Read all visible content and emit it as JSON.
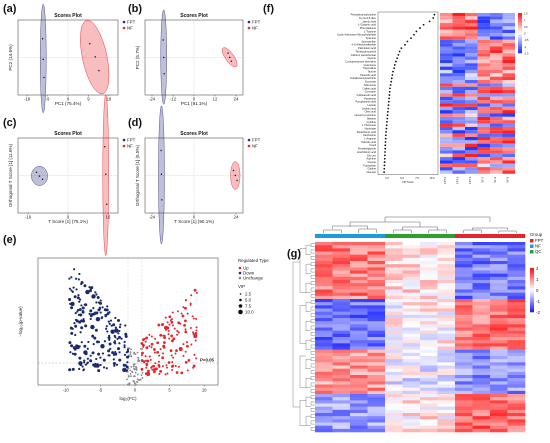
{
  "panel_labels": [
    "(a)",
    "(b)",
    "(c)",
    "(d)",
    "(e)",
    "(f)",
    "(g)"
  ],
  "chart_data": [
    {
      "panel": "(a)",
      "type": "scatter",
      "title": "Scores Plot",
      "xlabel": "PC1 (75.4%)",
      "ylabel": "PC2 (14.6%)",
      "xticks": [
        "-18",
        "-9",
        "0",
        "9",
        "18"
      ],
      "legend": [
        "FPT",
        "NF"
      ],
      "colors": {
        "FPT": "#2b2f7a",
        "NF": "#e3262b"
      },
      "series": [
        {
          "name": "FPT",
          "x": [
            -11.2,
            -10.9,
            -10.6
          ],
          "y": [
            3.0,
            -0.3,
            -3.2
          ]
        },
        {
          "name": "NF",
          "x": [
            9.6,
            12.0,
            13.6
          ],
          "y": [
            2.2,
            0.1,
            -2.1
          ]
        }
      ]
    },
    {
      "panel": "(b)",
      "type": "scatter",
      "title": "Scores Plot",
      "xlabel": "PC1 (91.1%)",
      "ylabel": "PC2 (5.7%)",
      "xticks": [
        "-24",
        "-12",
        "0",
        "12",
        "24"
      ],
      "legend": [
        "FPT",
        "NF"
      ],
      "colors": {
        "FPT": "#2b2f7a",
        "NF": "#e3262b"
      },
      "series": [
        {
          "name": "FPT",
          "x": [
            -17.6,
            -17.3,
            -17.0
          ],
          "y": [
            2.8,
            0.0,
            -2.6
          ]
        },
        {
          "name": "NF",
          "x": [
            19.5,
            20.4,
            21.3
          ],
          "y": [
            0.7,
            0.0,
            -0.6
          ]
        }
      ]
    },
    {
      "panel": "(c)",
      "type": "scatter",
      "title": "Scores Plot",
      "xlabel": "T Score [1] (75.1%)",
      "ylabel": "Orthogonal T Score [1] (11.6%)",
      "xticks": [
        "-16",
        "0",
        "16"
      ],
      "legend": [
        "FPT",
        "NF"
      ],
      "colors": {
        "FPT": "#2b2f7a",
        "NF": "#e3262b"
      },
      "series": [
        {
          "name": "FPT",
          "x": [
            -12.6,
            -11.4,
            -10.2
          ],
          "y": [
            0.5,
            -0.1,
            -0.6
          ]
        },
        {
          "name": "NF",
          "x": [
            14.7,
            15.1,
            15.5
          ],
          "y": [
            4.6,
            0.2,
            -4.6
          ]
        }
      ]
    },
    {
      "panel": "(d)",
      "type": "scatter",
      "title": "Scores Plot",
      "xlabel": "T Score [1] (90.1%)",
      "ylabel": "Orthogonal T Score [1] (5.5%)",
      "xticks": [
        "-24",
        "0",
        "24"
      ],
      "legend": [
        "FPT",
        "NF"
      ],
      "colors": {
        "FPT": "#2b2f7a",
        "NF": "#e3262b"
      },
      "series": [
        {
          "name": "FPT",
          "x": [
            -18.8,
            -18.6,
            -18.4
          ],
          "y": [
            4.0,
            0.2,
            -3.9
          ]
        },
        {
          "name": "NF",
          "x": [
            22.6,
            23.6,
            24.6
          ],
          "y": [
            0.8,
            0.0,
            -0.8
          ]
        }
      ]
    },
    {
      "panel": "(e)",
      "type": "scatter",
      "xlabel": "log₂(FC)",
      "ylabel": "−log₁₀(p-value)",
      "xticks": [
        "-10",
        "-5",
        "0",
        "5",
        "10"
      ],
      "xlim": [
        -14,
        12
      ],
      "ylim": [
        0,
        7.5
      ],
      "threshold_label": "P=0.05",
      "threshold_y": 1.3,
      "legend_title": "Regulated Type",
      "legend": [
        "Up",
        "Down",
        "Unchange"
      ],
      "colors": {
        "Up": "#e3262b",
        "Down": "#1b2a6b",
        "Unchange": "#888888"
      },
      "vip_title": "VIP",
      "vip_sizes": [
        "2.5",
        "5.0",
        "7.5",
        "10.0"
      ]
    },
    {
      "panel": "(f)",
      "type": "heatmap",
      "xlabel": "VIP Score",
      "xticks": [
        "2.5",
        "5.0",
        "7.5",
        "10.0"
      ],
      "column_labels": [
        "FPT-1",
        "FPT-2",
        "FPT-3",
        "NF-1",
        "NF-2",
        "NF-3"
      ],
      "colorbar_ticks": [
        "1.5",
        "1",
        "0.5",
        "0",
        "-0.5",
        "-1",
        "-1.5"
      ],
      "rows": [
        "Pentadecanoylcholine",
        "11-cis-3,5-dien",
        "Jasmic Acid",
        "L-Glutamic acid",
        "Phenylalanine",
        "L-Tyrosine",
        "Cyclic Adenosine Monophosphate",
        "Tyramine",
        "Spiroxanthin",
        "4-O-Methylmelleolide",
        "Palmitoleic acid",
        "Tetrahydrocortisol",
        "Calcium pantothenate",
        "Glycine",
        "Cyclopentanone derivative",
        "Guanosine",
        "Trigonelline",
        "Taurine",
        "Pipecolic acid",
        "Tetradecanoylcarnitine",
        "Succinate",
        "Adenosine",
        "Caffeic acid",
        "Coumarin",
        "Indoleacetic acid",
        "Hordenine",
        "Pyroglutamic acid",
        "Lactate",
        "Linoleic acid",
        "Oleic acid",
        "Hexanoyl carnitine",
        "Betaine",
        "Cytidine",
        "L-Threonine",
        "Nicotinate",
        "Pantothenic acid",
        "Xanthosine",
        "L-Arginine",
        "Palmitic acid",
        "Uracil",
        "Dimethylglycine",
        "Arachidonic acid",
        "Gly-Leu",
        "Adenine",
        "Inosine",
        "Tryptophan",
        "Choline",
        "Glucose"
      ],
      "vip_scores": [
        10.4,
        10.2,
        9.6,
        8.6,
        8.0,
        7.4,
        7.0,
        6.5,
        5.9,
        5.5,
        4.9,
        4.6,
        4.4,
        4.2,
        4.0,
        3.8,
        3.7,
        3.5,
        3.4,
        3.3,
        3.2,
        3.1,
        3.0,
        2.95,
        2.9,
        2.85,
        2.8,
        2.75,
        2.7,
        2.65,
        2.6,
        2.55,
        2.5,
        2.45,
        2.4,
        2.35,
        2.3,
        2.28,
        2.25,
        2.22,
        2.2,
        2.17,
        2.15,
        2.12,
        2.1,
        2.07,
        2.05,
        2.02
      ]
    },
    {
      "panel": "(g)",
      "type": "heatmap",
      "legend_title": "Group",
      "groups": [
        "FPT",
        "NF",
        "QC"
      ],
      "group_colors": {
        "FPT": "#e3262b",
        "NF": "#1f77b4",
        "QC": "#2ca02c"
      },
      "colorbar_ticks": [
        "2",
        "1",
        "0",
        "-1",
        "-2"
      ]
    }
  ],
  "colors": {
    "red": "#e3262b",
    "navy": "#2b2f7a",
    "blue": "#2437c9",
    "white": "#ffffff"
  }
}
